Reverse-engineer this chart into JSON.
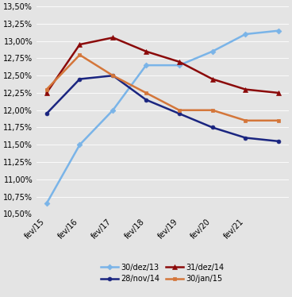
{
  "x_labels": [
    "fev/15",
    "fev/16",
    "fev/17",
    "fev/18",
    "fev/19",
    "fev/20",
    "fev/21",
    ""
  ],
  "series": [
    {
      "label": "30/dez/13",
      "color": "#7ab4e8",
      "marker": "D",
      "markersize": 3.5,
      "linewidth": 1.8,
      "data": [
        0.1065,
        0.115,
        0.12,
        0.1265,
        0.1265,
        0.1285,
        0.131,
        0.1315
      ]
    },
    {
      "label": "28/nov/14",
      "color": "#1a2580",
      "marker": "o",
      "markersize": 3.5,
      "linewidth": 1.8,
      "data": [
        0.1195,
        0.1245,
        0.125,
        0.1215,
        0.1195,
        0.1175,
        0.116,
        0.1155
      ]
    },
    {
      "label": "31/dez/14",
      "color": "#8b0a0a",
      "marker": "^",
      "markersize": 4.5,
      "linewidth": 1.8,
      "data": [
        0.1225,
        0.1295,
        0.1305,
        0.1285,
        0.127,
        0.1245,
        0.123,
        0.1225
      ]
    },
    {
      "label": "30/jan/15",
      "color": "#d4763a",
      "marker": "s",
      "markersize": 3.5,
      "linewidth": 1.8,
      "data": [
        0.123,
        0.128,
        0.125,
        0.1225,
        0.12,
        0.12,
        0.1185,
        0.1185
      ]
    }
  ],
  "ylim": [
    0.105,
    0.135
  ],
  "yticks": [
    0.105,
    0.1075,
    0.11,
    0.1125,
    0.115,
    0.1175,
    0.12,
    0.1225,
    0.125,
    0.1275,
    0.13,
    0.1325,
    0.135
  ],
  "background_color": "#e4e4e4",
  "tick_fontsize": 7.0,
  "legend_fontsize": 7.0
}
